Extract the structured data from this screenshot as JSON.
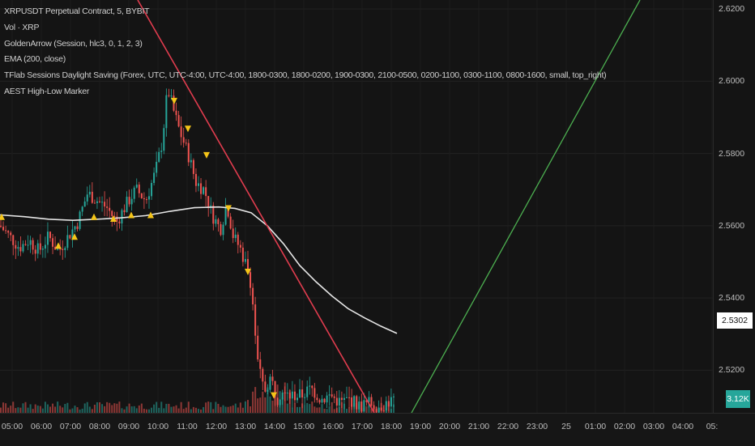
{
  "legend": {
    "line1": "XRPUSDT Perpetual Contract, 5, BYBIT",
    "line2": "Vol · XRP",
    "line3": "GoldenArrow (Session, hlc3, 0, 1, 2, 3)",
    "line4": "EMA (200, close)",
    "line5": "TFlab Sessions Daylight Saving (Forex, UTC, UTC-4:00, UTC-4:00, 1800-0300, 1800-0200, 1900-0300, 2100-0500, 0200-1100, 0300-1100, 0800-1600, small, top_right)",
    "line6": "AEST High-Low Marker"
  },
  "last_price_label": "2.5302",
  "volume_badge": "3.12K",
  "colors": {
    "up": "#26a69a",
    "down": "#ef5350",
    "ema": "#e6e6e6",
    "trendline_red": "#e03c4e",
    "trendline_green": "#4caf50",
    "arrow_yellow": "#f5c518",
    "background": "#141414"
  },
  "chart_data": {
    "type": "candlestick",
    "symbol": "XRPUSDT Perpetual Contract",
    "interval": "5",
    "exchange": "BYBIT",
    "price_axis": {
      "labels": [
        "2.6200",
        "2.6000",
        "2.5800",
        "2.5600",
        "2.5400",
        "2.5200"
      ],
      "values": [
        2.62,
        2.6,
        2.58,
        2.56,
        2.54,
        2.52
      ],
      "range": [
        2.5082,
        2.6225
      ]
    },
    "time_axis": {
      "labels": [
        "05:00",
        "06:00",
        "07:00",
        "08:00",
        "09:00",
        "10:00",
        "11:00",
        "12:00",
        "13:00",
        "14:00",
        "15:00",
        "16:00",
        "17:00",
        "18:00",
        "19:00",
        "20:00",
        "21:00",
        "22:00",
        "23:00",
        "25",
        "01:00",
        "02:00",
        "03:00",
        "04:00",
        "05:"
      ]
    },
    "price_path": [
      [
        0,
        2.56
      ],
      [
        12,
        2.557
      ],
      [
        24,
        2.554
      ],
      [
        36,
        2.556
      ],
      [
        48,
        2.553
      ],
      [
        60,
        2.557
      ],
      [
        72,
        2.553
      ],
      [
        84,
        2.557
      ],
      [
        96,
        2.561
      ],
      [
        108,
        2.569
      ],
      [
        120,
        2.567
      ],
      [
        132,
        2.565
      ],
      [
        144,
        2.561
      ],
      [
        156,
        2.566
      ],
      [
        168,
        2.57
      ],
      [
        180,
        2.567
      ],
      [
        192,
        2.575
      ],
      [
        200,
        2.583
      ],
      [
        207,
        2.598
      ],
      [
        214,
        2.592
      ],
      [
        222,
        2.586
      ],
      [
        232,
        2.58
      ],
      [
        242,
        2.572
      ],
      [
        252,
        2.57
      ],
      [
        262,
        2.563
      ],
      [
        272,
        2.559
      ],
      [
        280,
        2.566
      ],
      [
        288,
        2.557
      ],
      [
        296,
        2.554
      ],
      [
        304,
        2.549
      ],
      [
        310,
        2.544
      ],
      [
        318,
        2.522
      ],
      [
        326,
        2.514
      ],
      [
        334,
        2.518
      ],
      [
        342,
        2.512
      ],
      [
        350,
        2.516
      ],
      [
        360,
        2.513
      ],
      [
        372,
        2.513
      ],
      [
        384,
        2.515
      ],
      [
        396,
        2.512
      ],
      [
        408,
        2.513
      ],
      [
        420,
        2.511
      ],
      [
        432,
        2.512
      ],
      [
        444,
        2.51
      ],
      [
        456,
        2.511
      ],
      [
        468,
        2.51
      ],
      [
        478,
        2.511
      ],
      [
        488,
        2.512
      ]
    ],
    "ema200": [
      [
        0,
        2.563
      ],
      [
        30,
        2.5625
      ],
      [
        60,
        2.5618
      ],
      [
        90,
        2.5615
      ],
      [
        120,
        2.5618
      ],
      [
        150,
        2.5622
      ],
      [
        180,
        2.5628
      ],
      [
        210,
        2.564
      ],
      [
        240,
        2.565
      ],
      [
        270,
        2.5652
      ],
      [
        290,
        2.5648
      ],
      [
        310,
        2.5636
      ],
      [
        330,
        2.56
      ],
      [
        350,
        2.555
      ],
      [
        370,
        2.549
      ],
      [
        390,
        2.5445
      ],
      [
        410,
        2.5405
      ],
      [
        430,
        2.537
      ],
      [
        450,
        2.5345
      ],
      [
        470,
        2.5322
      ],
      [
        490,
        2.5302
      ]
    ],
    "arrows_down": [
      [
        215,
        2.5945
      ],
      [
        232,
        2.5868
      ],
      [
        255,
        2.5795
      ],
      [
        282,
        2.5648
      ],
      [
        306,
        2.5472
      ],
      [
        338,
        2.513
      ]
    ],
    "arrows_up": [
      [
        2,
        2.5625
      ],
      [
        72,
        2.5545
      ],
      [
        92,
        2.557
      ],
      [
        116,
        2.5625
      ],
      [
        140,
        2.562
      ],
      [
        162,
        2.563
      ],
      [
        186,
        2.563
      ]
    ],
    "trendline_red": [
      [
        170,
        2.6225
      ],
      [
        462,
        2.5082
      ]
    ],
    "trendline_green": [
      [
        508,
        2.5082
      ],
      [
        790,
        2.6225
      ]
    ]
  }
}
